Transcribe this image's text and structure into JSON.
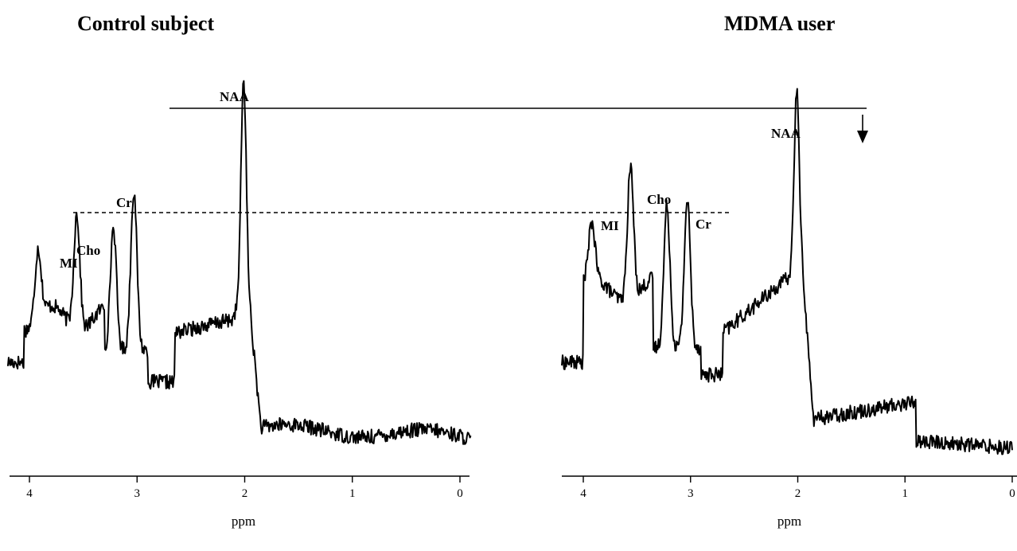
{
  "chart_data": [
    {
      "type": "line",
      "title": "Control subject",
      "xlabel": "ppm",
      "ylabel": "",
      "x_reversed": true,
      "xlim": [
        4.2,
        -0.1
      ],
      "xticks": [
        4,
        3,
        2,
        1,
        0
      ],
      "xtick_labels": [
        "4",
        "3",
        "2",
        "1",
        "0"
      ],
      "grid": false,
      "series": [
        {
          "peaks": [
            {
              "label": "MI",
              "ppm": 3.56,
              "height": 0.52
            },
            {
              "label": "Cho",
              "ppm": 3.22,
              "height": 0.55
            },
            {
              "label": "Cr",
              "ppm": 3.03,
              "height": 0.7
            },
            {
              "label": "NAA",
              "ppm": 2.01,
              "height": 1.0
            }
          ]
        }
      ],
      "annotations": {
        "solid_reference": "NAA",
        "dashed_reference": "Cr"
      }
    },
    {
      "type": "line",
      "title": "MDMA user",
      "xlabel": "ppm",
      "ylabel": "",
      "x_reversed": true,
      "xlim": [
        4.2,
        0.0
      ],
      "xticks": [
        4,
        3,
        2,
        1,
        0
      ],
      "xtick_labels": [
        "4",
        "3",
        "2",
        "1",
        "0"
      ],
      "grid": false,
      "series": [
        {
          "peaks": [
            {
              "label": "MI",
              "ppm": 3.56,
              "height": 0.66
            },
            {
              "label": "Cho",
              "ppm": 3.22,
              "height": 0.7
            },
            {
              "label": "Cr",
              "ppm": 3.03,
              "height": 0.72
            },
            {
              "label": "NAA",
              "ppm": 2.01,
              "height": 0.88
            }
          ]
        }
      ],
      "annotations": {
        "arrow_at_ppm": 1.4
      }
    }
  ]
}
